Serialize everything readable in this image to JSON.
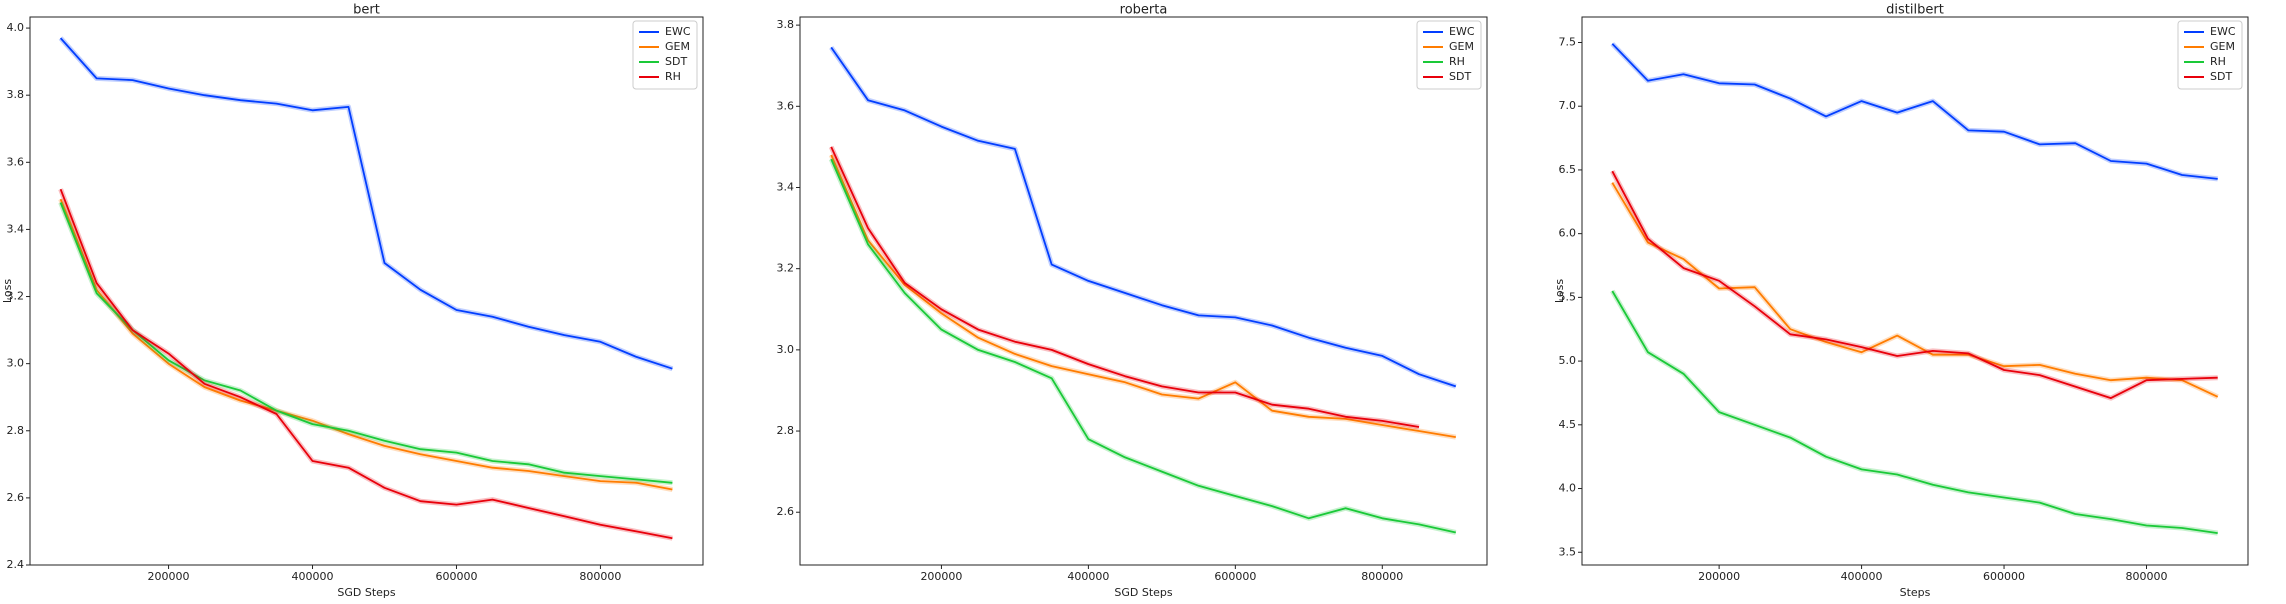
{
  "chart_data": [
    {
      "type": "line",
      "title": "bert",
      "xlabel": "SGD Steps",
      "ylabel": "Loss",
      "x": [
        50000,
        100000,
        150000,
        200000,
        250000,
        300000,
        350000,
        400000,
        450000,
        500000,
        550000,
        600000,
        650000,
        700000,
        750000,
        800000,
        850000,
        900000
      ],
      "series": [
        {
          "name": "EWC",
          "color": "#023eff",
          "values": [
            3.97,
            3.85,
            3.845,
            3.82,
            3.8,
            3.785,
            3.775,
            3.755,
            3.765,
            3.3,
            3.22,
            3.16,
            3.14,
            3.11,
            3.085,
            3.065,
            3.02,
            2.985
          ]
        },
        {
          "name": "GEM",
          "color": "#ff7c00",
          "values": [
            3.49,
            3.22,
            3.09,
            3.0,
            2.93,
            2.89,
            2.86,
            2.83,
            2.79,
            2.755,
            2.73,
            2.71,
            2.69,
            2.68,
            2.665,
            2.65,
            2.645,
            2.625
          ]
        },
        {
          "name": "SDT",
          "color": "#1ac938",
          "values": [
            3.48,
            3.21,
            3.1,
            3.01,
            2.95,
            2.92,
            2.86,
            2.82,
            2.8,
            2.77,
            2.745,
            2.735,
            2.71,
            2.7,
            2.675,
            2.665,
            2.655,
            2.645
          ]
        },
        {
          "name": "RH",
          "color": "#e8000b",
          "values": [
            3.52,
            3.24,
            3.1,
            3.03,
            2.94,
            2.9,
            2.85,
            2.71,
            2.69,
            2.63,
            2.59,
            2.58,
            2.595,
            2.57,
            2.545,
            2.52,
            2.5,
            2.48
          ]
        }
      ],
      "xlim": [
        7500,
        942500
      ],
      "xticks": [
        200000,
        400000,
        600000,
        800000
      ],
      "ylim": [
        2.4,
        4.033
      ],
      "yticks": [
        2.4,
        2.6,
        2.8,
        {
          "value": 3,
          "label": "3.0"
        },
        3.2,
        3.4,
        3.6,
        3.8,
        {
          "value": 4,
          "label": "4.0"
        }
      ],
      "legend": "upper right"
    },
    {
      "type": "line",
      "title": "roberta",
      "xlabel": "SGD Steps",
      "x": [
        50000,
        100000,
        150000,
        200000,
        250000,
        300000,
        350000,
        400000,
        450000,
        500000,
        550000,
        600000,
        650000,
        700000,
        750000,
        800000,
        850000,
        900000
      ],
      "series": [
        {
          "name": "EWC",
          "color": "#023eff",
          "values": [
            3.745,
            3.615,
            3.59,
            3.55,
            3.515,
            3.495,
            3.21,
            3.17,
            3.14,
            3.11,
            3.085,
            3.08,
            3.06,
            3.03,
            3.005,
            2.985,
            2.94,
            2.91
          ]
        },
        {
          "name": "GEM",
          "color": "#ff7c00",
          "values": [
            3.48,
            3.27,
            3.16,
            3.09,
            3.03,
            2.99,
            2.96,
            2.94,
            2.92,
            2.89,
            2.88,
            2.92,
            2.85,
            2.835,
            2.83,
            2.815,
            2.8,
            2.785
          ]
        },
        {
          "name": "RH",
          "color": "#1ac938",
          "values": [
            3.47,
            3.26,
            3.14,
            3.05,
            3.0,
            2.97,
            2.93,
            2.78,
            2.735,
            2.7,
            2.665,
            2.64,
            2.615,
            2.585,
            2.61,
            2.585,
            2.57,
            2.55
          ]
        },
        {
          "name": "SDT",
          "color": "#e8000b",
          "values": [
            3.5,
            3.3,
            3.165,
            3.1,
            3.05,
            3.02,
            3.0,
            2.965,
            2.935,
            2.91,
            2.895,
            2.895,
            2.865,
            2.855,
            2.835,
            2.825,
            2.81,
            null
          ]
        }
      ],
      "xlim": [
        7500,
        942500
      ],
      "xticks": [
        200000,
        400000,
        600000,
        800000
      ],
      "ylim": [
        2.47,
        3.82
      ],
      "yticks": [
        2.6,
        2.8,
        {
          "value": 3,
          "label": "3.0"
        },
        3.2,
        3.4,
        3.6,
        3.8
      ],
      "legend": "upper right"
    },
    {
      "type": "line",
      "title": "distilbert",
      "xlabel": "Steps",
      "ylabel": "Loss",
      "x": [
        50000,
        100000,
        150000,
        200000,
        250000,
        300000,
        350000,
        400000,
        450000,
        500000,
        550000,
        600000,
        650000,
        700000,
        750000,
        800000,
        850000,
        900000
      ],
      "series": [
        {
          "name": "EWC",
          "color": "#023eff",
          "values": [
            7.49,
            7.2,
            7.25,
            7.18,
            7.17,
            7.06,
            6.92,
            7.04,
            6.95,
            7.04,
            6.81,
            6.8,
            6.7,
            6.71,
            6.57,
            6.55,
            6.46,
            6.43
          ]
        },
        {
          "name": "GEM",
          "color": "#ff7c00",
          "values": [
            6.4,
            5.93,
            5.8,
            5.57,
            5.58,
            5.25,
            5.15,
            5.07,
            5.2,
            5.05,
            5.05,
            4.96,
            4.97,
            4.9,
            4.85,
            4.87,
            4.85,
            4.72
          ]
        },
        {
          "name": "RH",
          "color": "#1ac938",
          "values": [
            5.55,
            5.07,
            4.9,
            4.6,
            4.5,
            4.4,
            4.25,
            4.15,
            4.11,
            4.03,
            3.97,
            3.93,
            3.89,
            3.8,
            3.76,
            3.71,
            3.69,
            3.65
          ]
        },
        {
          "name": "SDT",
          "color": "#e8000b",
          "values": [
            6.49,
            5.96,
            5.73,
            5.63,
            5.43,
            5.21,
            5.17,
            5.11,
            5.04,
            5.08,
            5.06,
            4.93,
            4.89,
            4.8,
            4.71,
            4.85,
            4.86,
            4.87
          ]
        }
      ],
      "xlim": [
        7500,
        942500
      ],
      "xticks": [
        200000,
        400000,
        600000,
        800000
      ],
      "ylim": [
        3.4,
        7.7
      ],
      "yticks": [
        3.5,
        {
          "value": 4,
          "label": "4.0"
        },
        4.5,
        {
          "value": 5,
          "label": "5.0"
        },
        5.5,
        {
          "value": 6,
          "label": "6.0"
        },
        6.5,
        {
          "value": 7,
          "label": "7.0"
        },
        7.5
      ],
      "legend": "upper right"
    }
  ]
}
